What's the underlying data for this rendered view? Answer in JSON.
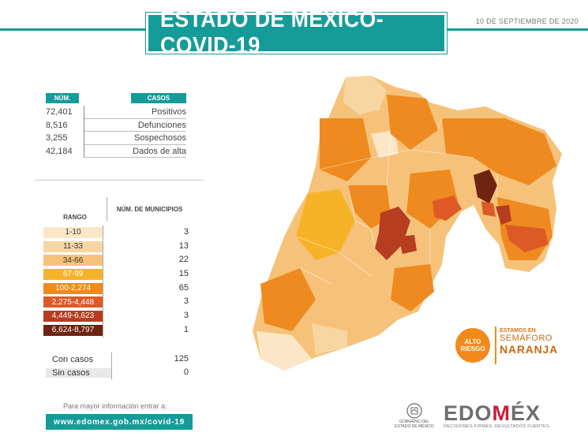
{
  "header": {
    "title": "ESTADO DE MÉXICO-COVID-19",
    "date": "10 DE SEPTIEMBRE DE 2020"
  },
  "stats": {
    "col_num": "NÚM.",
    "col_casos": "CASOS",
    "rows": [
      {
        "num": "72,401",
        "label": "Positivos"
      },
      {
        "num": "8,516",
        "label": "Defunciones"
      },
      {
        "num": "3,255",
        "label": "Sospechosos"
      },
      {
        "num": "42,184",
        "label": "Dados de alta"
      }
    ]
  },
  "legend": {
    "col_rango": "RANGO",
    "col_municipios": "NÚM. DE MUNICIPIOS",
    "rows": [
      {
        "range": "1-10",
        "count": "3",
        "color": "#fbe6c8",
        "text_color": "#333333"
      },
      {
        "range": "11-33",
        "count": "13",
        "color": "#f8d6a4",
        "text_color": "#333333"
      },
      {
        "range": "34-66",
        "count": "22",
        "color": "#f6c27a",
        "text_color": "#333333"
      },
      {
        "range": "67-99",
        "count": "15",
        "color": "#f7b327",
        "text_color": "#ffffff"
      },
      {
        "range": "100-2,274",
        "count": "65",
        "color": "#ee8a1f",
        "text_color": "#ffffff"
      },
      {
        "range": "2,275-4,448",
        "count": "3",
        "color": "#dd5a27",
        "text_color": "#ffffff"
      },
      {
        "range": "4,449-6,623",
        "count": "3",
        "color": "#b63d1f",
        "text_color": "#ffffff"
      },
      {
        "range": "6,624-8,797",
        "count": "1",
        "color": "#6f2411",
        "text_color": "#ffffff"
      }
    ]
  },
  "cases": {
    "con_casos_label": "Con casos",
    "con_casos_value": "125",
    "sin_casos_label": "Sin casos",
    "sin_casos_value": "0"
  },
  "footer": {
    "more_info": "Para mayor información entrar a:",
    "url": "www.edomex.gob.mx/covid-19"
  },
  "badge": {
    "risk_line1": "ALTO",
    "risk_line2": "RIESGO",
    "line1": "ESTAMOS EN",
    "line2": "SEMÁFORO",
    "line3": "NARANJA",
    "color": "#f28a1b"
  },
  "logos": {
    "gob_line1": "GOBIERNO DEL",
    "gob_line2": "ESTADO DE MÉXICO",
    "edomex_pre": "EDO",
    "edomex_m": "M",
    "edomex_post": "ÉX",
    "edomex_tagline": "DECISIONES FIRMES, RESULTADOS FUERTES."
  }
}
